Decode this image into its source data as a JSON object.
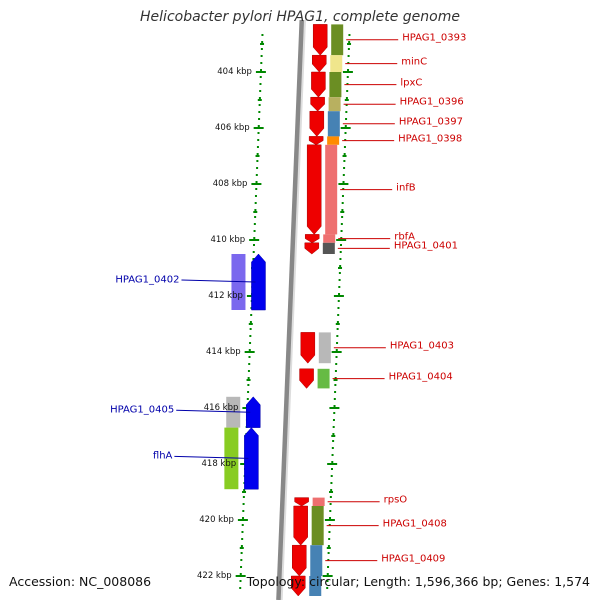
{
  "title": "Helicobacter pylori HPAG1, complete genome",
  "footer": {
    "accession": "Accession: NC_008086",
    "topology": "Topology: circular; Length: 1,596,366 bp; Genes: 1,574"
  },
  "colors": {
    "forward_arrow": "#ee0000",
    "reverse_arrow": "#0000ee",
    "right_label": "#cc0000",
    "left_label": "#0000aa",
    "tick": "#008800",
    "axis": "#888888"
  },
  "scale": {
    "unit": "kbp",
    "ticks": [
      {
        "kbp": 404,
        "label": "404 kbp"
      },
      {
        "kbp": 406,
        "label": "406 kbp"
      },
      {
        "kbp": 408,
        "label": "408 kbp"
      },
      {
        "kbp": 410,
        "label": "410 kbp"
      },
      {
        "kbp": 412,
        "label": "412 kbp"
      },
      {
        "kbp": 414,
        "label": "414 kbp"
      },
      {
        "kbp": 416,
        "label": "416 kbp"
      },
      {
        "kbp": 418,
        "label": "418 kbp"
      },
      {
        "kbp": 420,
        "label": "420 kbp"
      },
      {
        "kbp": 422,
        "label": "422 kbp"
      }
    ]
  },
  "genes": [
    {
      "name": "HPAG1_0393",
      "strand": "+",
      "start": 402.3,
      "end": 403.4
    },
    {
      "name": "minC",
      "strand": "+",
      "start": 403.4,
      "end": 404.0
    },
    {
      "name": "lpxC",
      "strand": "+",
      "start": 404.0,
      "end": 404.9
    },
    {
      "name": "HPAG1_0396",
      "strand": "+",
      "start": 404.9,
      "end": 405.4
    },
    {
      "name": "HPAG1_0397",
      "strand": "+",
      "start": 405.4,
      "end": 406.3
    },
    {
      "name": "HPAG1_0398",
      "strand": "+",
      "start": 406.3,
      "end": 406.6
    },
    {
      "name": "infB",
      "strand": "+",
      "start": 406.6,
      "end": 409.8
    },
    {
      "name": "rbfA",
      "strand": "+",
      "start": 409.8,
      "end": 410.1
    },
    {
      "name": "HPAG1_0401",
      "strand": "+",
      "start": 410.1,
      "end": 410.5
    },
    {
      "name": "HPAG1_0402",
      "strand": "-",
      "start": 410.5,
      "end": 412.5
    },
    {
      "name": "HPAG1_0403",
      "strand": "+",
      "start": 413.3,
      "end": 414.4
    },
    {
      "name": "HPAG1_0404",
      "strand": "+",
      "start": 414.6,
      "end": 415.3
    },
    {
      "name": "HPAG1_0405",
      "strand": "-",
      "start": 415.6,
      "end": 416.7
    },
    {
      "name": "flhA",
      "strand": "-",
      "start": 416.7,
      "end": 418.9
    },
    {
      "name": "rpsO",
      "strand": "+",
      "start": 419.2,
      "end": 419.5
    },
    {
      "name": "HPAG1_0408",
      "strand": "+",
      "start": 419.5,
      "end": 420.9
    },
    {
      "name": "HPAG1_0409",
      "strand": "+",
      "start": 420.9,
      "end": 422.0
    },
    {
      "name": "",
      "strand": "+",
      "start": 422.0,
      "end": 423.0
    }
  ]
}
